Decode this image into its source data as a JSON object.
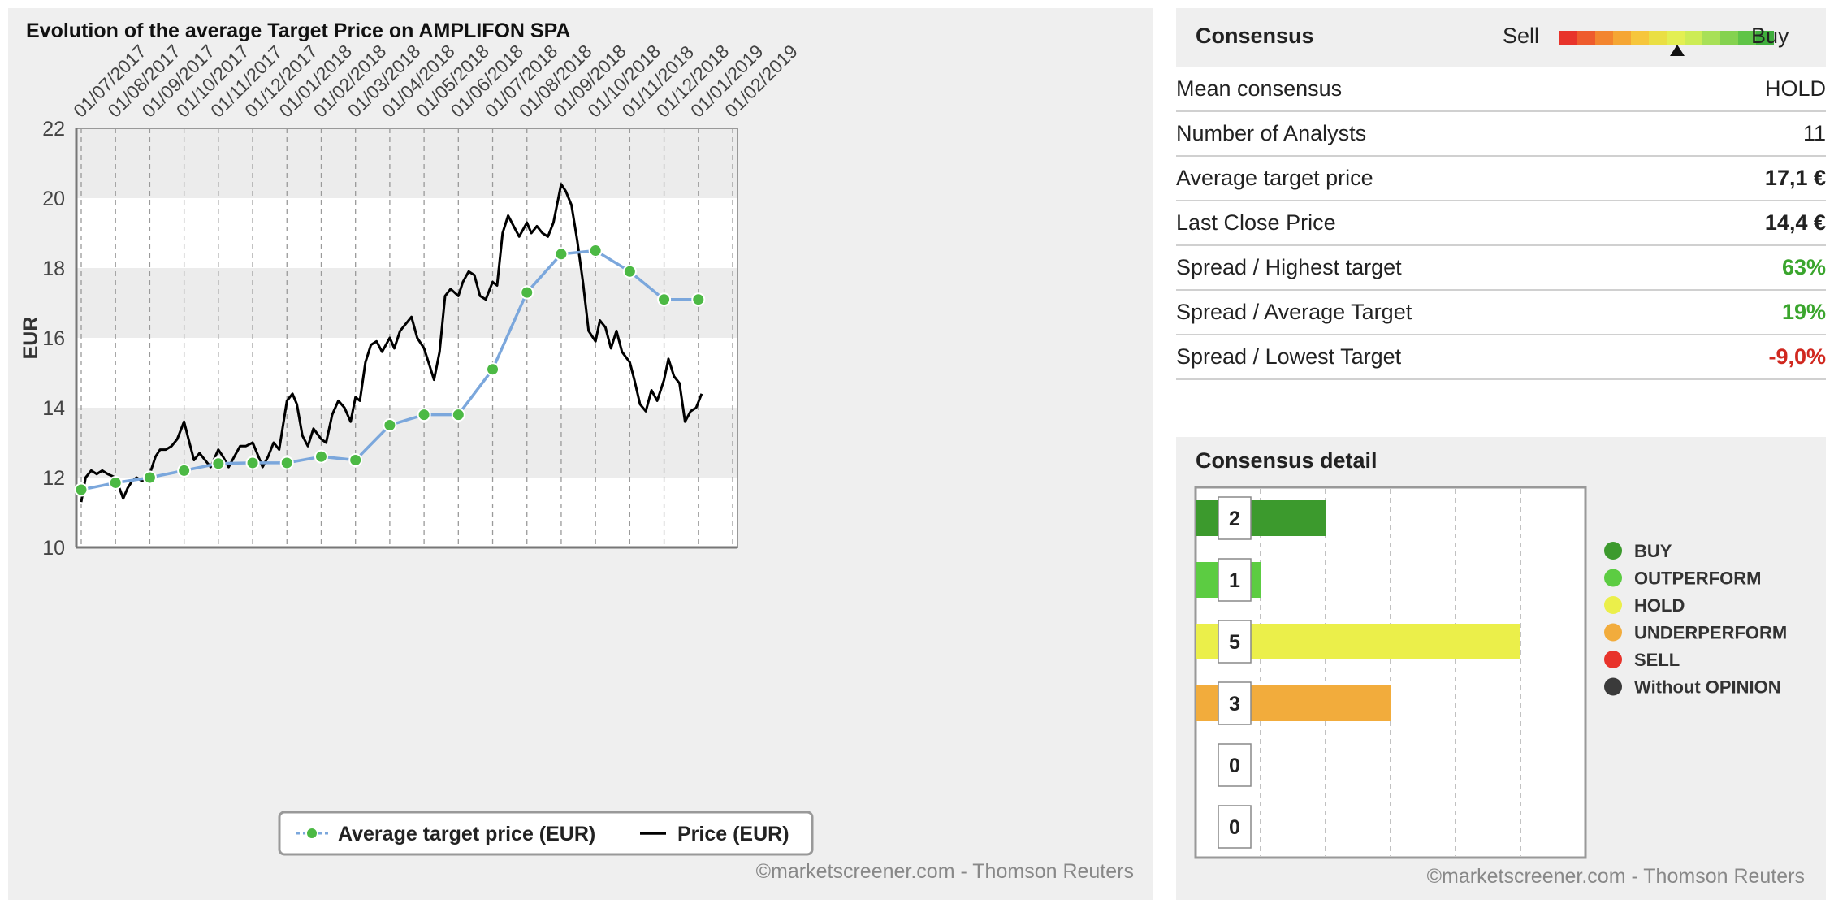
{
  "chart": {
    "title": "Evolution of the average Target Price on AMPLIFON SPA",
    "copyright": "©marketscreener.com - Thomson Reuters"
  },
  "chart_data": [
    {
      "type": "line",
      "title": "Evolution of the average Target Price on AMPLIFON SPA",
      "ylabel": "EUR",
      "xlabel": "",
      "ylim": [
        10,
        22
      ],
      "yticks": [
        10,
        12,
        14,
        16,
        18,
        20,
        22
      ],
      "x_tick_labels": [
        "01/07/2017",
        "01/08/2017",
        "01/09/2017",
        "01/10/2017",
        "01/11/2017",
        "01/12/2017",
        "01/01/2018",
        "01/02/2018",
        "01/03/2018",
        "01/04/2018",
        "01/05/2018",
        "01/06/2018",
        "01/07/2018",
        "01/08/2018",
        "01/09/2018",
        "01/10/2018",
        "01/11/2018",
        "01/12/2018",
        "01/01/2019",
        "01/02/2019"
      ],
      "grid": "vertical dashed lines, alternating horizontal bands",
      "legend_position": "bottom",
      "series": [
        {
          "name": "Average target price (EUR)",
          "color": "#7ba7dc",
          "marker_color": "#4cb944",
          "x": [
            "01/07/2017",
            "01/08/2017",
            "01/09/2017",
            "01/10/2017",
            "01/11/2017",
            "01/12/2017",
            "01/01/2018",
            "01/02/2018",
            "01/03/2018",
            "01/04/2018",
            "01/05/2018",
            "01/06/2018",
            "01/07/2018",
            "01/08/2018",
            "01/09/2018",
            "01/10/2018",
            "01/11/2018",
            "01/12/2018",
            "01/01/2019"
          ],
          "values": [
            11.65,
            11.85,
            12.0,
            12.2,
            12.4,
            12.42,
            12.42,
            12.6,
            12.5,
            13.5,
            13.8,
            13.8,
            15.1,
            17.3,
            18.4,
            18.5,
            17.9,
            17.1,
            17.1
          ]
        },
        {
          "name": "Price (EUR)",
          "color": "#000000",
          "x": [
            "01/07/2017",
            "05/07/2017",
            "10/07/2017",
            "15/07/2017",
            "20/07/2017",
            "25/07/2017",
            "01/08/2017",
            "08/08/2017",
            "12/08/2017",
            "16/08/2017",
            "20/08/2017",
            "25/08/2017",
            "01/09/2017",
            "06/09/2017",
            "10/09/2017",
            "15/09/2017",
            "20/09/2017",
            "25/09/2017",
            "01/10/2017",
            "05/10/2017",
            "10/10/2017",
            "15/10/2017",
            "20/10/2017",
            "25/10/2017",
            "01/11/2017",
            "05/11/2017",
            "10/11/2017",
            "15/11/2017",
            "20/11/2017",
            "25/11/2017",
            "01/12/2017",
            "05/12/2017",
            "10/12/2017",
            "15/12/2017",
            "20/12/2017",
            "25/12/2017",
            "01/01/2018",
            "06/01/2018",
            "10/01/2018",
            "15/01/2018",
            "20/01/2018",
            "25/01/2018",
            "01/02/2018",
            "05/02/2018",
            "10/02/2018",
            "15/02/2018",
            "20/02/2018",
            "25/02/2018",
            "01/03/2018",
            "05/03/2018",
            "10/03/2018",
            "15/03/2018",
            "20/03/2018",
            "25/03/2018",
            "01/04/2018",
            "05/04/2018",
            "10/04/2018",
            "15/04/2018",
            "20/04/2018",
            "25/04/2018",
            "01/05/2018",
            "05/05/2018",
            "10/05/2018",
            "15/05/2018",
            "20/05/2018",
            "25/05/2018",
            "01/06/2018",
            "05/06/2018",
            "10/06/2018",
            "15/06/2018",
            "20/06/2018",
            "25/06/2018",
            "01/07/2018",
            "05/07/2018",
            "10/07/2018",
            "15/07/2018",
            "20/07/2018",
            "25/07/2018",
            "01/08/2018",
            "05/08/2018",
            "10/08/2018",
            "15/08/2018",
            "20/08/2018",
            "25/08/2018",
            "01/09/2018",
            "05/09/2018",
            "10/09/2018",
            "15/09/2018",
            "20/09/2018",
            "25/09/2018",
            "01/10/2018",
            "05/10/2018",
            "10/10/2018",
            "15/10/2018",
            "20/10/2018",
            "25/10/2018",
            "01/11/2018",
            "05/11/2018",
            "10/11/2018",
            "15/11/2018",
            "20/11/2018",
            "25/11/2018",
            "01/12/2018",
            "05/12/2018",
            "10/12/2018",
            "15/12/2018",
            "20/12/2018",
            "25/12/2018",
            "30/12/2018",
            "04/01/2019"
          ],
          "values": [
            11.3,
            12.0,
            12.2,
            12.1,
            12.2,
            12.1,
            12.0,
            11.4,
            11.7,
            11.9,
            12.0,
            11.9,
            12.1,
            12.6,
            12.8,
            12.8,
            12.9,
            13.1,
            13.6,
            13.1,
            12.5,
            12.7,
            12.5,
            12.3,
            12.8,
            12.6,
            12.3,
            12.6,
            12.9,
            12.9,
            13.0,
            12.7,
            12.3,
            12.6,
            13.0,
            12.8,
            14.2,
            14.4,
            14.1,
            13.2,
            12.9,
            13.4,
            13.1,
            13.0,
            13.8,
            14.2,
            14.0,
            13.6,
            14.3,
            14.2,
            15.3,
            15.8,
            15.9,
            15.6,
            16.0,
            15.7,
            16.2,
            16.4,
            16.6,
            16.0,
            15.7,
            15.3,
            14.8,
            15.6,
            17.2,
            17.4,
            17.2,
            17.6,
            17.9,
            17.8,
            17.2,
            17.1,
            17.6,
            17.5,
            19.0,
            19.5,
            19.2,
            18.9,
            19.3,
            19.0,
            19.2,
            19.0,
            18.9,
            19.3,
            20.4,
            20.2,
            19.8,
            18.8,
            17.6,
            16.2,
            15.9,
            16.5,
            16.3,
            15.7,
            16.2,
            15.6,
            15.3,
            14.8,
            14.1,
            13.9,
            14.5,
            14.2,
            14.8,
            15.4,
            14.9,
            14.7,
            13.6,
            13.9,
            14.0,
            14.4
          ]
        }
      ]
    },
    {
      "type": "bar",
      "orientation": "horizontal",
      "title": "Consensus detail",
      "categories": [
        "BUY",
        "OUTPERFORM",
        "HOLD",
        "UNDERPERFORM",
        "SELL",
        "Without OPINION"
      ],
      "values": [
        2,
        1,
        5,
        3,
        0,
        0
      ],
      "colors": [
        "#3c9a2d",
        "#5ccc42",
        "#ebef4a",
        "#f2ac3c",
        "#e8332b",
        "#3a3a3a"
      ],
      "xlim": [
        0,
        6
      ],
      "grid": "vertical dashed lines",
      "legend_position": "right"
    }
  ],
  "consensus": {
    "title": "Consensus",
    "sell_label": "Sell",
    "buy_label": "Buy",
    "gauge_colors": [
      "#e8332b",
      "#ee5b2d",
      "#f3852f",
      "#f5a634",
      "#f6c63c",
      "#eadf44",
      "#e3ef52",
      "#cdec55",
      "#a8e057",
      "#84d24f",
      "#5fc447",
      "#3fae3c"
    ],
    "gauge_level": 0.55,
    "rows": [
      {
        "label": "Mean consensus",
        "value": "HOLD",
        "color": "#222222",
        "bold": false
      },
      {
        "label": "Number of Analysts",
        "value": "11",
        "color": "#222222",
        "bold": false
      },
      {
        "label": "Average target price",
        "value": "17,1 €",
        "color": "#222222",
        "bold": true
      },
      {
        "label": "Last Close Price",
        "value": "14,4 €",
        "color": "#222222",
        "bold": true
      },
      {
        "label": "Spread / Highest target",
        "value": "63%",
        "color": "#3aa52d",
        "bold": true
      },
      {
        "label": "Spread / Average Target",
        "value": "19%",
        "color": "#3aa52d",
        "bold": true
      },
      {
        "label": "Spread / Lowest Target",
        "value": "-9,0%",
        "color": "#d0281f",
        "bold": true
      }
    ]
  },
  "detail": {
    "title": "Consensus detail",
    "copyright": "©marketscreener.com - Thomson Reuters"
  }
}
